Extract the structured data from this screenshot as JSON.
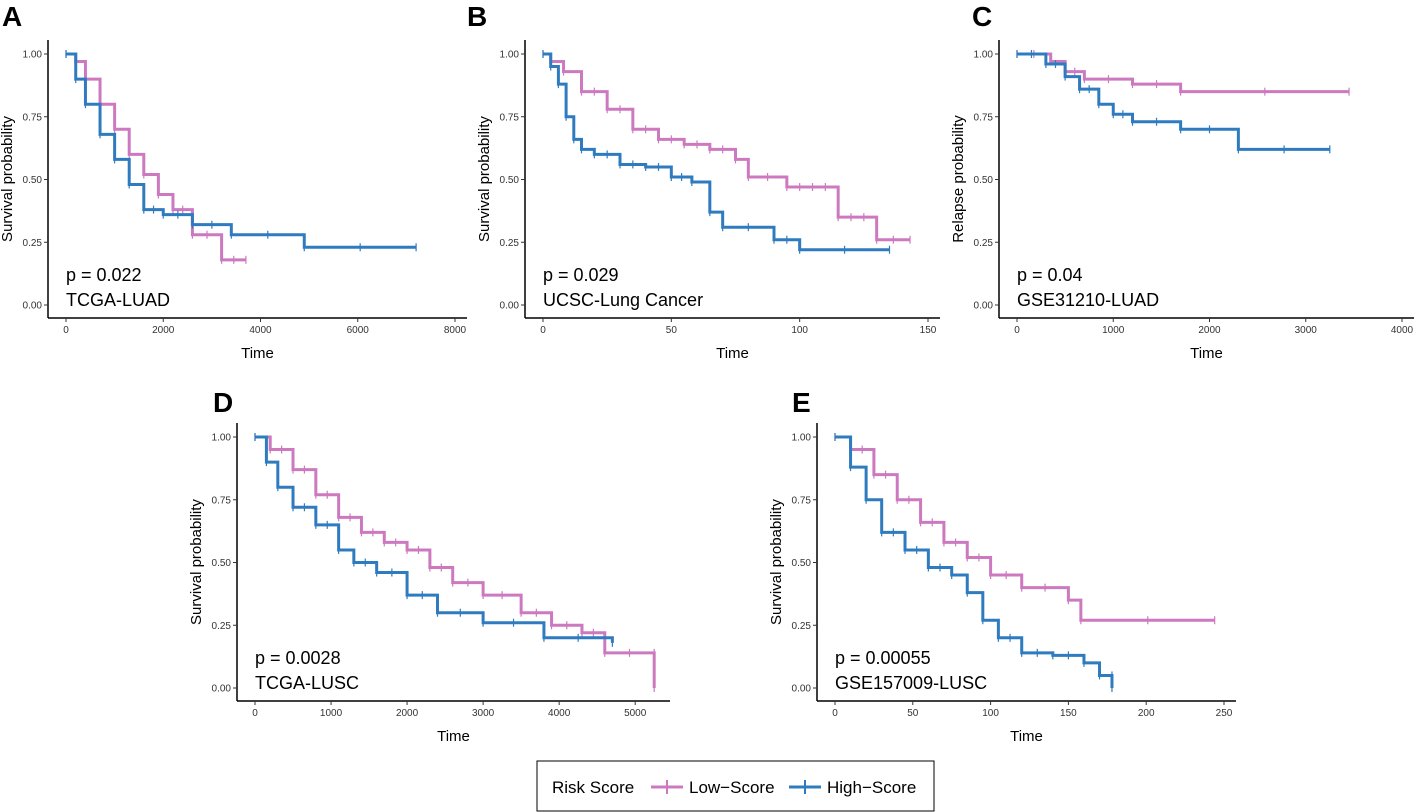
{
  "legend": {
    "title": "Risk Score",
    "entries": [
      {
        "name": "Low−Score",
        "color": "#CC79C0"
      },
      {
        "name": "High−Score",
        "color": "#2F7BBF"
      }
    ]
  },
  "chart_data": [
    {
      "panel": "A",
      "type": "line",
      "xlabel": "Time",
      "ylabel": "Survival probability",
      "xlim": [
        0,
        8000
      ],
      "ylim": [
        0,
        1
      ],
      "xticks": [
        "0",
        "2000",
        "4000",
        "6000",
        "8000"
      ],
      "yticks": [
        "0.00",
        "0.25",
        "0.50",
        "0.75",
        "1.00"
      ],
      "pvalue": "p = 0.022",
      "dataset": "TCGA-LUAD",
      "series": [
        {
          "name": "Low−Score",
          "color": "#CC79C0",
          "x": [
            0,
            200,
            400,
            700,
            1000,
            1300,
            1600,
            1900,
            2200,
            2600,
            3200,
            3700
          ],
          "y": [
            1.0,
            0.97,
            0.9,
            0.8,
            0.7,
            0.6,
            0.52,
            0.44,
            0.38,
            0.28,
            0.18,
            0.18
          ]
        },
        {
          "name": "High−Score",
          "color": "#2F7BBF",
          "x": [
            0,
            200,
            400,
            700,
            1000,
            1300,
            1600,
            2000,
            2600,
            3400,
            4900,
            7200
          ],
          "y": [
            1.0,
            0.9,
            0.8,
            0.68,
            0.58,
            0.48,
            0.38,
            0.36,
            0.32,
            0.28,
            0.23,
            0.23
          ]
        }
      ]
    },
    {
      "panel": "B",
      "type": "line",
      "xlabel": "Time",
      "ylabel": "Survival probability",
      "xlim": [
        0,
        150
      ],
      "ylim": [
        0,
        1
      ],
      "xticks": [
        "0",
        "50",
        "100",
        "150"
      ],
      "yticks": [
        "0.00",
        "0.25",
        "0.50",
        "0.75",
        "1.00"
      ],
      "pvalue": "p = 0.029",
      "dataset": "UCSC-Lung Cancer",
      "series": [
        {
          "name": "Low−Score",
          "color": "#CC79C0",
          "x": [
            0,
            3,
            8,
            15,
            25,
            35,
            45,
            55,
            65,
            75,
            80,
            95,
            105,
            115,
            125,
            130,
            143
          ],
          "y": [
            1.0,
            0.97,
            0.93,
            0.85,
            0.78,
            0.7,
            0.66,
            0.64,
            0.62,
            0.58,
            0.51,
            0.47,
            0.47,
            0.35,
            0.35,
            0.26,
            0.26
          ]
        },
        {
          "name": "High−Score",
          "color": "#2F7BBF",
          "x": [
            0,
            3,
            6,
            9,
            12,
            15,
            20,
            30,
            40,
            50,
            58,
            65,
            70,
            90,
            100,
            135
          ],
          "y": [
            1.0,
            0.95,
            0.88,
            0.75,
            0.66,
            0.62,
            0.6,
            0.56,
            0.55,
            0.51,
            0.49,
            0.37,
            0.31,
            0.26,
            0.22,
            0.22
          ]
        }
      ]
    },
    {
      "panel": "C",
      "type": "line",
      "xlabel": "Time",
      "ylabel": "Relapse probability",
      "xlim": [
        0,
        4000
      ],
      "ylim": [
        0,
        1
      ],
      "xticks": [
        "0",
        "1000",
        "2000",
        "3000",
        "4000"
      ],
      "yticks": [
        "0.00",
        "0.25",
        "0.50",
        "0.75",
        "1.00"
      ],
      "pvalue": "p = 0.04",
      "dataset": "GSE31210-LUAD",
      "series": [
        {
          "name": "Low−Score",
          "color": "#CC79C0",
          "x": [
            0,
            350,
            500,
            700,
            1200,
            1700,
            3450
          ],
          "y": [
            1.0,
            0.97,
            0.93,
            0.9,
            0.88,
            0.85,
            0.85
          ]
        },
        {
          "name": "High−Score",
          "color": "#2F7BBF",
          "x": [
            0,
            300,
            500,
            650,
            850,
            1000,
            1200,
            1700,
            2300,
            3250
          ],
          "y": [
            1.0,
            0.96,
            0.91,
            0.86,
            0.8,
            0.76,
            0.73,
            0.7,
            0.62,
            0.62
          ]
        }
      ]
    },
    {
      "panel": "D",
      "type": "line",
      "xlabel": "Time",
      "ylabel": "Survival probability",
      "xlim": [
        0,
        5300
      ],
      "ylim": [
        0,
        1
      ],
      "xticks": [
        "0",
        "1000",
        "2000",
        "3000",
        "4000",
        "5000"
      ],
      "yticks": [
        "0.00",
        "0.25",
        "0.50",
        "0.75",
        "1.00"
      ],
      "pvalue": "p = 0.0028",
      "dataset": "TCGA-LUSC",
      "series": [
        {
          "name": "Low−Score",
          "color": "#CC79C0",
          "x": [
            0,
            200,
            500,
            800,
            1100,
            1400,
            1700,
            2000,
            2300,
            2600,
            3000,
            3500,
            3900,
            4300,
            4600,
            5250,
            5250
          ],
          "y": [
            1.0,
            0.95,
            0.87,
            0.77,
            0.68,
            0.62,
            0.58,
            0.55,
            0.48,
            0.42,
            0.37,
            0.3,
            0.25,
            0.22,
            0.14,
            0.14,
            0.0
          ]
        },
        {
          "name": "High−Score",
          "color": "#2F7BBF",
          "x": [
            0,
            150,
            300,
            500,
            800,
            1100,
            1300,
            1600,
            2000,
            2400,
            3000,
            3800,
            4700
          ],
          "y": [
            1.0,
            0.9,
            0.8,
            0.72,
            0.65,
            0.55,
            0.5,
            0.46,
            0.37,
            0.3,
            0.26,
            0.2,
            0.18
          ]
        }
      ]
    },
    {
      "panel": "E",
      "type": "line",
      "xlabel": "Time",
      "ylabel": "Survival probability",
      "xlim": [
        0,
        250
      ],
      "ylim": [
        0,
        1
      ],
      "xticks": [
        "0",
        "50",
        "100",
        "150",
        "200",
        "250"
      ],
      "yticks": [
        "0.00",
        "0.25",
        "0.50",
        "0.75",
        "1.00"
      ],
      "pvalue": "p = 0.00055",
      "dataset": "GSE157009-LUSC",
      "series": [
        {
          "name": "Low−Score",
          "color": "#CC79C0",
          "x": [
            0,
            10,
            25,
            40,
            55,
            70,
            85,
            100,
            120,
            150,
            158,
            244
          ],
          "y": [
            1.0,
            0.95,
            0.85,
            0.75,
            0.66,
            0.58,
            0.52,
            0.45,
            0.4,
            0.35,
            0.27,
            0.27
          ]
        },
        {
          "name": "High−Score",
          "color": "#2F7BBF",
          "x": [
            0,
            10,
            20,
            30,
            45,
            60,
            75,
            85,
            95,
            105,
            120,
            140,
            160,
            170,
            178,
            178
          ],
          "y": [
            1.0,
            0.88,
            0.75,
            0.62,
            0.55,
            0.48,
            0.45,
            0.38,
            0.27,
            0.2,
            0.14,
            0.13,
            0.1,
            0.05,
            0.05,
            0.0
          ]
        }
      ]
    }
  ]
}
